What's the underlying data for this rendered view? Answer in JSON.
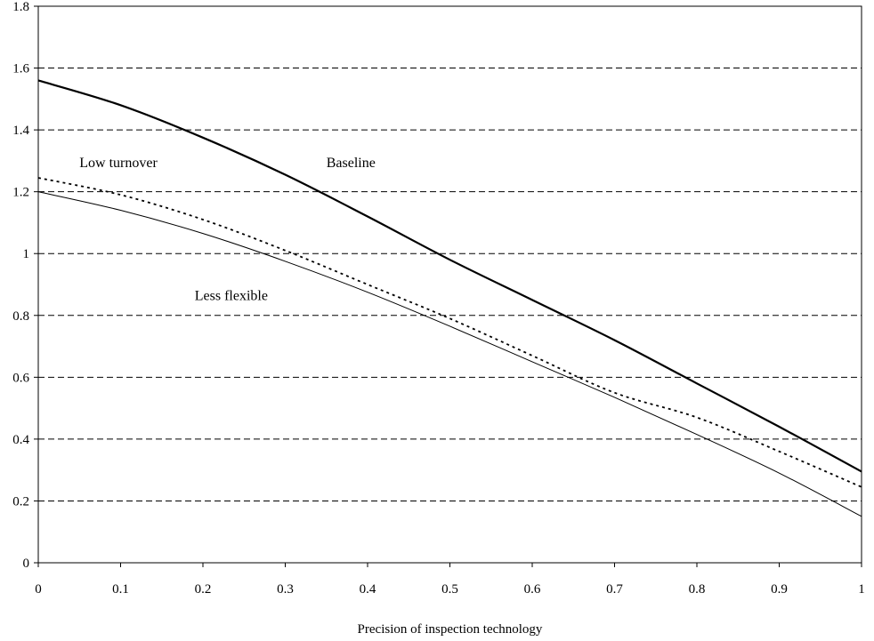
{
  "chart_data": {
    "type": "line",
    "xlabel": "Precision of inspection technology",
    "ylabel": "",
    "xlim": [
      0,
      1
    ],
    "ylim": [
      0,
      1.8
    ],
    "x_ticks": [
      "0",
      "0.1",
      "0.2",
      "0.3",
      "0.4",
      "0.5",
      "0.6",
      "0.7",
      "0.8",
      "0.9",
      "1"
    ],
    "y_ticks": [
      "0",
      "0.2",
      "0.4",
      "0.6",
      "0.8",
      "1",
      "1.2",
      "1.4",
      "1.6",
      "1.8"
    ],
    "grid": "horizontal-dashed",
    "series": [
      {
        "name": "Baseline",
        "style": "thick-solid",
        "x": [
          0,
          0.1,
          0.2,
          0.3,
          0.4,
          0.5,
          0.6,
          0.7,
          0.8,
          0.9,
          1
        ],
        "y": [
          1.56,
          1.48,
          1.375,
          1.255,
          1.12,
          0.98,
          0.85,
          0.72,
          0.58,
          0.44,
          0.295
        ]
      },
      {
        "name": "Low turnover",
        "style": "dotted",
        "x": [
          0,
          0.1,
          0.2,
          0.3,
          0.4,
          0.5,
          0.6,
          0.7,
          0.8,
          0.9,
          1
        ],
        "y": [
          1.245,
          1.19,
          1.11,
          1.01,
          0.9,
          0.79,
          0.67,
          0.55,
          0.47,
          0.36,
          0.245
        ]
      },
      {
        "name": "Less flexible",
        "style": "thin-solid",
        "x": [
          0,
          0.1,
          0.2,
          0.3,
          0.4,
          0.5,
          0.6,
          0.7,
          0.8,
          0.9,
          1
        ],
        "y": [
          1.2,
          1.14,
          1.065,
          0.975,
          0.875,
          0.765,
          0.65,
          0.535,
          0.415,
          0.29,
          0.15
        ]
      }
    ]
  }
}
